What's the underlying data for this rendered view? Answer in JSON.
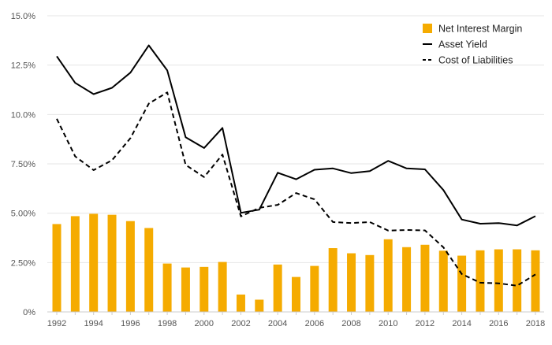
{
  "chart_data": {
    "type": "bar",
    "x": [
      1992,
      1993,
      1994,
      1995,
      1996,
      1997,
      1998,
      1999,
      2000,
      2001,
      2002,
      2003,
      2004,
      2005,
      2006,
      2007,
      2008,
      2009,
      2010,
      2011,
      2012,
      2013,
      2014,
      2015,
      2016,
      2017,
      2018
    ],
    "series": [
      {
        "name": "Net Interest Margin",
        "type": "bar",
        "color": "#F5AB00",
        "values": [
          4.45,
          4.85,
          4.97,
          4.92,
          4.6,
          4.25,
          2.45,
          2.25,
          2.28,
          2.53,
          0.88,
          0.62,
          2.4,
          1.77,
          2.33,
          3.23,
          2.97,
          2.88,
          3.68,
          3.28,
          3.4,
          3.1,
          2.85,
          3.12,
          3.17,
          3.17,
          3.12
        ]
      },
      {
        "name": "Asset Yield",
        "type": "line",
        "style": "solid",
        "color": "#000000",
        "values": [
          12.95,
          11.6,
          11.03,
          11.35,
          12.12,
          13.5,
          12.23,
          8.85,
          8.3,
          9.32,
          5.02,
          5.18,
          7.05,
          6.72,
          7.2,
          7.27,
          7.03,
          7.13,
          7.65,
          7.27,
          7.22,
          6.17,
          4.68,
          4.47,
          4.5,
          4.38,
          4.85
        ]
      },
      {
        "name": "Cost of Liabilities",
        "type": "line",
        "style": "dashed",
        "color": "#000000",
        "values": [
          9.78,
          7.88,
          7.18,
          7.68,
          8.8,
          10.55,
          11.12,
          7.45,
          6.83,
          7.97,
          4.84,
          5.27,
          5.42,
          6.02,
          5.7,
          4.55,
          4.5,
          4.55,
          4.12,
          4.15,
          4.13,
          3.27,
          1.92,
          1.48,
          1.45,
          1.33,
          1.9
        ]
      }
    ],
    "x_tick_labels": [
      "1992",
      "1994",
      "1996",
      "1998",
      "2000",
      "2002",
      "2004",
      "2006",
      "2008",
      "2010",
      "2012",
      "2014",
      "2016",
      "2018"
    ],
    "y_tick_labels": [
      "0%",
      "2.50%",
      "5.00%",
      "7.50%",
      "10.0%",
      "12.5%",
      "15.0%"
    ],
    "y_ticks": [
      0,
      2.5,
      5,
      7.5,
      10,
      12.5,
      15
    ],
    "ylim": [
      0,
      15
    ],
    "title": "",
    "xlabel": "",
    "ylabel": "",
    "grid": "horizontal",
    "legend_position": "top-right",
    "colors": {
      "grid": "#e6e6e6",
      "axis": "#cccccc",
      "bar": "#F5AB00",
      "line": "#000000"
    }
  }
}
